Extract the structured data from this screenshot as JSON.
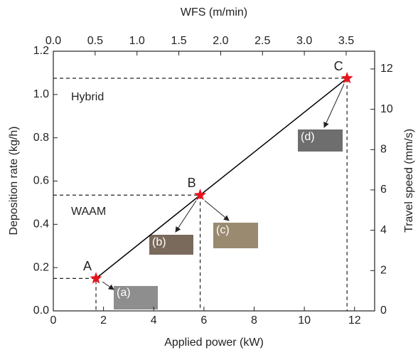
{
  "chart_data": {
    "type": "line",
    "xlabel": "Applied power (kW)",
    "ylabel": "Deposition rate (kg/h)",
    "x2label": "WFS (m/min)",
    "y2label": "Travel speed (mm/s)",
    "x": [
      1.7,
      5.85,
      11.7
    ],
    "values": [
      0.15,
      0.535,
      1.075
    ],
    "point_labels": [
      "A",
      "B",
      "C"
    ],
    "color": "#000000",
    "marker_color": "#e8141c",
    "xlim": [
      0,
      12.8
    ],
    "xticks": [
      0,
      2,
      4,
      6,
      8,
      10,
      12
    ],
    "ylim": [
      0,
      1.2
    ],
    "yticks": [
      {
        "value": 0,
        "label": "0.0"
      },
      {
        "value": 0.2,
        "label": "0.2"
      },
      {
        "value": 0.4,
        "label": "0.4"
      },
      {
        "value": 0.6,
        "label": "0.6"
      },
      {
        "value": 0.8,
        "label": "0.8"
      },
      {
        "value": 1,
        "label": "1.0"
      },
      {
        "value": 1.2,
        "label": "1.2"
      }
    ],
    "x2lim": [
      0,
      3.84
    ],
    "x2ticks": [
      {
        "value": 0,
        "label": "0.0"
      },
      {
        "value": 0.5,
        "label": "0.5"
      },
      {
        "value": 1,
        "label": "1.0"
      },
      {
        "value": 1.5,
        "label": "1.5"
      },
      {
        "value": 2,
        "label": "2.0"
      },
      {
        "value": 2.5,
        "label": "2.5"
      },
      {
        "value": 3,
        "label": "3.0"
      },
      {
        "value": 3.5,
        "label": "3.5"
      }
    ],
    "y2lim": [
      0,
      12.88
    ],
    "y2ticks": [
      0,
      2,
      4,
      6,
      8,
      10,
      12
    ],
    "annotations": [
      "Hybrid",
      "WAAM"
    ],
    "insets": [
      "(a)",
      "(b)",
      "(c)",
      "(d)"
    ]
  }
}
